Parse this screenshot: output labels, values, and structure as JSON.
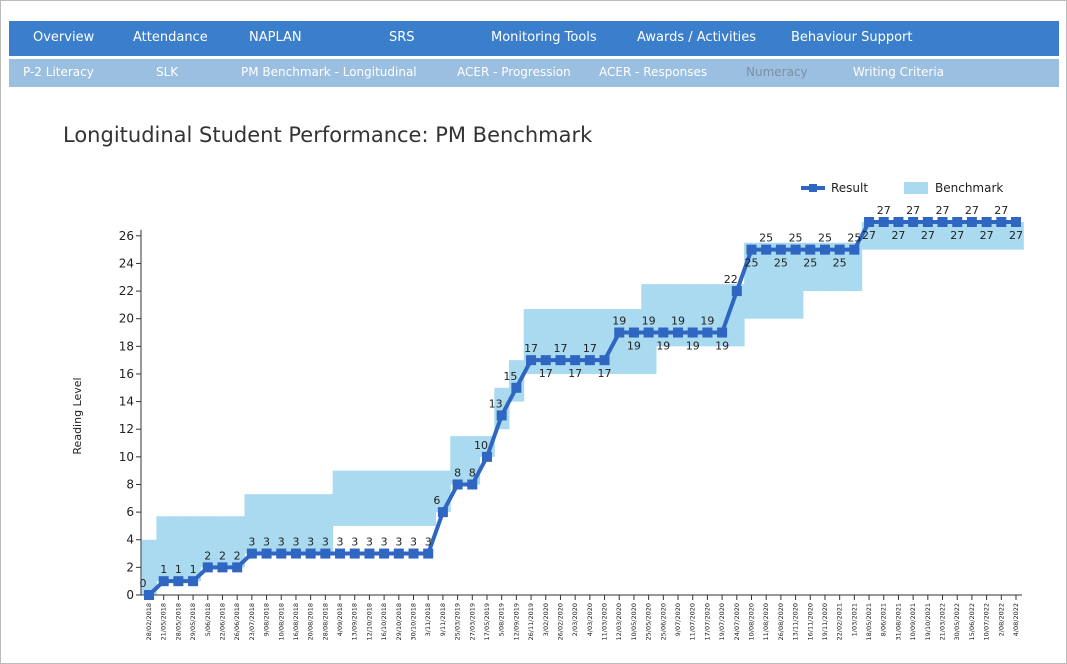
{
  "nav": {
    "primary": [
      "Overview",
      "Attendance",
      "NAPLAN",
      "SRS",
      "Monitoring Tools",
      "Awards / Activities",
      "Behaviour Support"
    ],
    "secondary": [
      "P-2 Literacy",
      "SLK",
      "PM Benchmark - Longitudinal",
      "ACER - Progression",
      "ACER - Responses",
      "Numeracy",
      "Writing Criteria"
    ]
  },
  "chart_data": {
    "type": "line",
    "title": "Longitudinal Student Performance: PM Benchmark",
    "y_label": "Reading Level",
    "categories": [
      "28/02/2018",
      "21/05/2018",
      "28/05/2018",
      "29/05/2018",
      "5/06/2018",
      "22/06/2018",
      "26/06/2018",
      "23/07/2018",
      "9/08/2018",
      "10/08/2018",
      "16/08/2018",
      "20/08/2018",
      "28/08/2018",
      "4/09/2018",
      "13/09/2018",
      "12/10/2018",
      "16/10/2018",
      "29/10/2018",
      "30/10/2018",
      "3/11/2018",
      "9/11/2018",
      "25/03/2019",
      "27/03/2019",
      "17/05/2019",
      "5/08/2019",
      "12/09/2019",
      "26/11/2019",
      "3/02/2020",
      "26/02/2020",
      "2/03/2020",
      "4/03/2020",
      "11/03/2020",
      "12/03/2020",
      "10/05/2020",
      "25/05/2020",
      "25/06/2020",
      "9/07/2020",
      "11/07/2020",
      "17/07/2020",
      "19/07/2020",
      "24/07/2020",
      "10/08/2020",
      "11/08/2020",
      "26/08/2020",
      "13/11/2020",
      "16/11/2020",
      "19/11/2020",
      "22/02/2021",
      "1/03/2021",
      "18/05/2021",
      "8/06/2021",
      "31/08/2021",
      "10/09/2021",
      "19/10/2021",
      "21/03/2022",
      "30/05/2022",
      "15/06/2022",
      "10/07/2022",
      "2/08/2022",
      "4/08/2022"
    ],
    "series": [
      {
        "name": "Result",
        "color": "#2f66c2",
        "values": [
          0,
          1,
          1,
          1,
          2,
          2,
          2,
          3,
          3,
          3,
          3,
          3,
          3,
          3,
          3,
          3,
          3,
          3,
          3,
          3,
          6,
          8,
          8,
          10,
          13,
          15,
          17,
          17,
          17,
          17,
          17,
          17,
          19,
          19,
          19,
          19,
          19,
          19,
          19,
          19,
          22,
          25,
          25,
          25,
          25,
          25,
          25,
          25,
          25,
          27,
          27,
          27,
          27,
          27,
          27,
          27,
          27,
          27,
          27,
          27
        ]
      },
      {
        "name": "Benchmark",
        "color": "#a9daf0",
        "low": [
          0,
          1,
          1,
          1,
          2,
          2,
          2,
          3,
          3,
          3,
          3,
          3,
          3,
          5,
          5,
          5,
          5,
          5,
          5,
          5,
          6,
          8,
          8,
          10,
          12,
          14,
          16,
          16,
          16,
          16,
          16,
          16,
          16,
          16,
          16,
          18,
          18,
          18,
          18,
          18,
          18,
          20,
          20,
          20,
          20,
          22,
          22,
          22,
          22,
          25,
          25,
          25,
          25,
          25,
          25,
          25,
          25,
          25,
          25,
          25
        ],
        "high": [
          4,
          5.7,
          5.7,
          5.7,
          5.7,
          5.7,
          5.7,
          7.3,
          7.3,
          7.3,
          7.3,
          7.3,
          7.3,
          9,
          9,
          9,
          9,
          9,
          9,
          9,
          9,
          11.5,
          11.5,
          11.5,
          15,
          17,
          20.7,
          20.7,
          20.7,
          20.7,
          20.7,
          20.7,
          20.7,
          20.7,
          22.5,
          22.5,
          22.5,
          22.5,
          22.5,
          22.5,
          22.5,
          25.5,
          25.5,
          25.5,
          25.5,
          25.5,
          25.5,
          25.5,
          25.5,
          27,
          27,
          27,
          27,
          27,
          27,
          27,
          27,
          27,
          27,
          27
        ]
      }
    ],
    "ylim": [
      0,
      27
    ],
    "yticks": [
      0,
      2,
      4,
      6,
      8,
      10,
      12,
      14,
      16,
      18,
      20,
      22,
      24,
      26
    ]
  }
}
